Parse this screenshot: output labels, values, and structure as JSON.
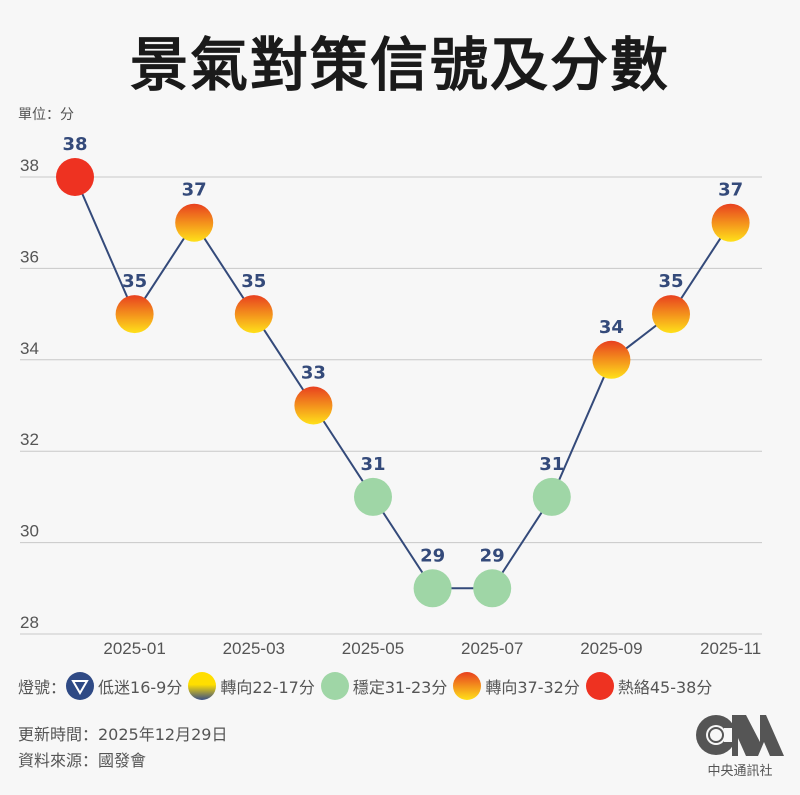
{
  "header": {
    "title": "景氣對策信號及分數",
    "unit": "單位：分"
  },
  "chart_data": {
    "type": "line",
    "title": "景氣對策信號及分數",
    "ylabel": "單位：分",
    "xlabel": "",
    "ylim": [
      28,
      38
    ],
    "yticks": [
      28,
      30,
      32,
      34,
      36,
      38
    ],
    "xtick_labels": [
      "2025-01",
      "2025-03",
      "2025-05",
      "2025-07",
      "2025-09",
      "2025-11"
    ],
    "x": [
      "2024-12",
      "2025-01",
      "2025-02",
      "2025-03",
      "2025-04",
      "2025-05",
      "2025-06",
      "2025-07",
      "2025-08",
      "2025-09",
      "2025-10",
      "2025-11"
    ],
    "values": [
      38,
      35,
      37,
      35,
      33,
      31,
      29,
      29,
      31,
      34,
      35,
      37
    ],
    "signals": [
      "red",
      "yellow-red",
      "yellow-red",
      "yellow-red",
      "yellow-red",
      "green",
      "green",
      "green",
      "green",
      "yellow-red",
      "yellow-red",
      "yellow-red"
    ],
    "grid": true,
    "line_color": "#344a7a",
    "label_color": "#344a7a"
  },
  "legend": {
    "label": "燈號：",
    "items": [
      {
        "name": "blue",
        "label": "低迷16-9分",
        "color": "#2f4a85"
      },
      {
        "name": "yellow-blue",
        "label": "轉向22-17分",
        "color": "#ffd700"
      },
      {
        "name": "green",
        "label": "穩定31-23分",
        "color": "#9fd6a6"
      },
      {
        "name": "yellow-red",
        "label": "轉向37-32分",
        "color": "#f07a1e"
      },
      {
        "name": "red",
        "label": "熱絡45-38分",
        "color": "#ee3221"
      }
    ]
  },
  "footer": {
    "updated": "更新時間：2025年12月29日",
    "source": "資料來源：國發會"
  },
  "logo": {
    "text": "CNA",
    "caption": "中央通訊社"
  }
}
